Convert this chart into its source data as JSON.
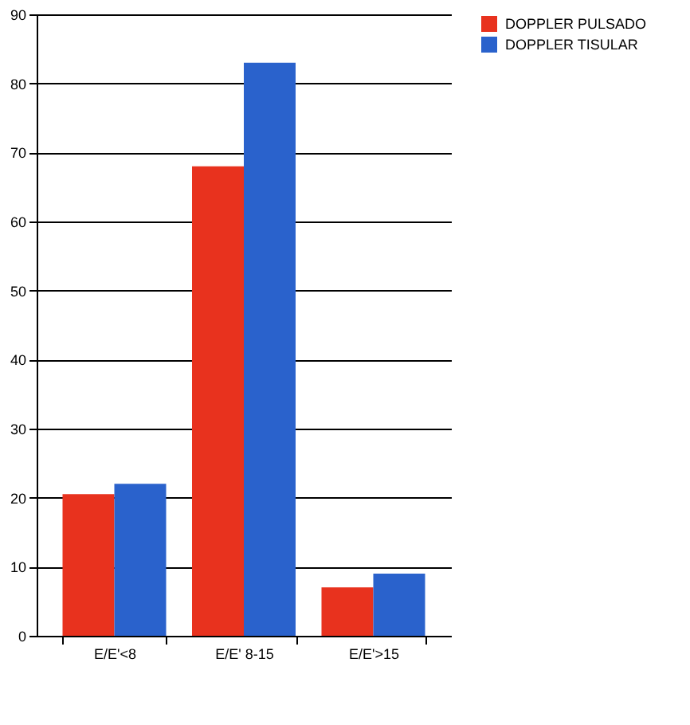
{
  "chart_data": {
    "type": "bar",
    "categories": [
      "E/E'<8",
      "E/E' 8-15",
      "E/E'>15"
    ],
    "series": [
      {
        "name": "DOPPLER PULSADO",
        "color": "#e8321e",
        "values": [
          20.5,
          68,
          7
        ]
      },
      {
        "name": "DOPPLER TISULAR",
        "color": "#2a62cc",
        "values": [
          22,
          83,
          9
        ]
      }
    ],
    "ylim": [
      0,
      90
    ],
    "yticks": [
      0,
      10,
      20,
      30,
      40,
      50,
      60,
      70,
      80,
      90
    ],
    "grid": "y",
    "legend": "right"
  }
}
